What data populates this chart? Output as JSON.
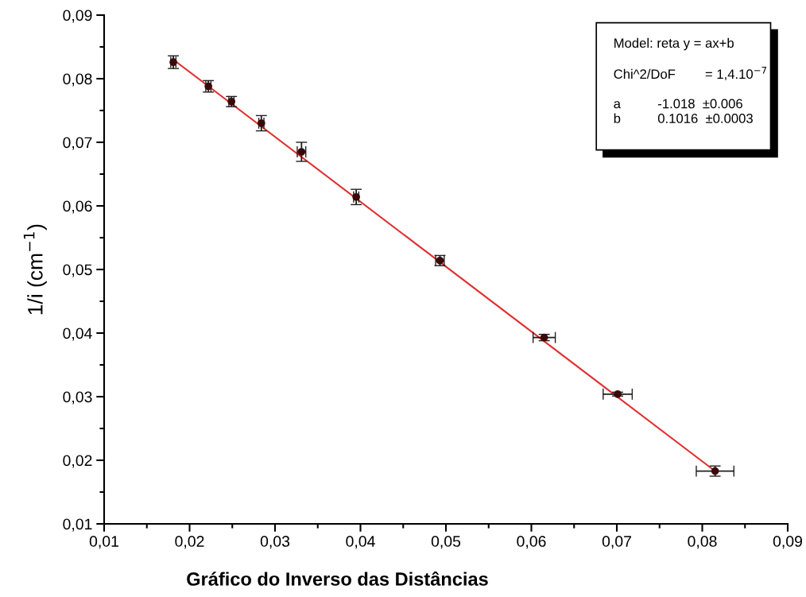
{
  "chart_data": {
    "type": "scatter",
    "xlabel": "Gráfico do Inverso das Distâncias",
    "ylabel": "1/i (cm$^{−1}$)",
    "xlim": [
      0.01,
      0.09
    ],
    "xticks": [
      {
        "value": 0.01,
        "label": "0,01"
      },
      {
        "value": 0.015,
        "label": null
      },
      {
        "value": 0.02,
        "label": "0,02"
      },
      {
        "value": 0.025,
        "label": null
      },
      {
        "value": 0.03,
        "label": "0,03"
      },
      {
        "value": 0.035,
        "label": null
      },
      {
        "value": 0.04,
        "label": "0,04"
      },
      {
        "value": 0.045,
        "label": null
      },
      {
        "value": 0.05,
        "label": "0,05"
      },
      {
        "value": 0.055,
        "label": null
      },
      {
        "value": 0.06,
        "label": "0,06"
      },
      {
        "value": 0.065,
        "label": null
      },
      {
        "value": 0.07,
        "label": "0,07"
      },
      {
        "value": 0.075,
        "label": null
      },
      {
        "value": 0.08,
        "label": "0,08"
      },
      {
        "value": 0.085,
        "label": null
      },
      {
        "value": 0.09,
        "label": "0,09"
      }
    ],
    "ylim": [
      0.01,
      0.09
    ],
    "yticks": [
      {
        "value": 0.01,
        "label": "0,01"
      },
      {
        "value": 0.015,
        "label": null
      },
      {
        "value": 0.02,
        "label": "0,02"
      },
      {
        "value": 0.025,
        "label": null
      },
      {
        "value": 0.03,
        "label": "0,03"
      },
      {
        "value": 0.035,
        "label": null
      },
      {
        "value": 0.04,
        "label": "0,04"
      },
      {
        "value": 0.045,
        "label": null
      },
      {
        "value": 0.05,
        "label": "0,05"
      },
      {
        "value": 0.055,
        "label": null
      },
      {
        "value": 0.06,
        "label": "0,06"
      },
      {
        "value": 0.065,
        "label": null
      },
      {
        "value": 0.07,
        "label": "0,07"
      },
      {
        "value": 0.075,
        "label": null
      },
      {
        "value": 0.08,
        "label": "0,08"
      },
      {
        "value": 0.085,
        "label": null
      },
      {
        "value": 0.09,
        "label": "0,09"
      }
    ],
    "grid": false,
    "series": [
      {
        "marker": "circle",
        "color": "#3a0a0a",
        "x": [
          0.0181,
          0.0222,
          0.0249,
          0.0284,
          0.0331,
          0.0395,
          0.0493,
          0.0615,
          0.0701,
          0.0815
        ],
        "values": [
          0.0826,
          0.0788,
          0.0764,
          0.073,
          0.0685,
          0.0614,
          0.0514,
          0.0393,
          0.0304,
          0.0183
        ],
        "errors": [
          0.001,
          0.0009,
          0.0008,
          0.0012,
          0.0015,
          0.0012,
          0.0008,
          0.0005,
          0.0003,
          0.0008
        ],
        "xerrors": [
          0.0003,
          0.0003,
          0.0003,
          0.0003,
          0.0005,
          0.0003,
          0.0005,
          0.0013,
          0.0017,
          0.0022
        ]
      },
      {
        "type": "line",
        "color": "#e03030",
        "x": [
          0.0181,
          0.0815
        ],
        "values": [
          0.083,
          0.0183
        ]
      }
    ],
    "annotations": [
      "Model: reta y = ax+b",
      "Chi^2/DoF        = 1,4.10$^{−7}$",
      "a          -1.018  ±0.006",
      "b          0.1016  ±0.0003"
    ]
  }
}
